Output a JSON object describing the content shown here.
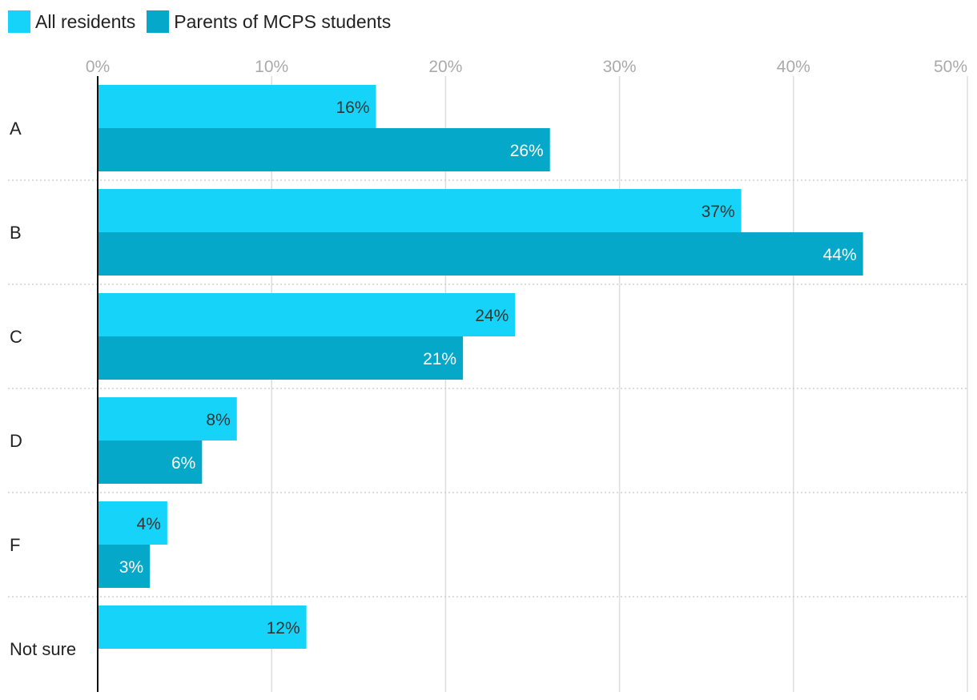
{
  "colors": {
    "all_residents": "#16d4f9",
    "parents": "#05a8c8",
    "grid": "#dddddd",
    "tick": "#aaaaaa",
    "separator": "#c8c8c8",
    "axis": "#111111",
    "label_dark": "#333333",
    "label_light": "#ffffff",
    "category_text": "#222222"
  },
  "legend": {
    "items": [
      {
        "label": "All residents",
        "color": "#16d4f9"
      },
      {
        "label": "Parents of MCPS students",
        "color": "#05a8c8"
      }
    ]
  },
  "chart_data": {
    "type": "bar",
    "orientation": "horizontal",
    "title": "",
    "xlabel": "",
    "ylabel": "",
    "xlim": [
      0,
      50
    ],
    "xticks": [
      "0%",
      "10%",
      "20%",
      "30%",
      "40%",
      "50%"
    ],
    "xtick_values": [
      0,
      10,
      20,
      30,
      40,
      50
    ],
    "grid": true,
    "legend_position": "top-left",
    "categories": [
      "A",
      "B",
      "C",
      "D",
      "F",
      "Not sure"
    ],
    "series": [
      {
        "name": "All residents",
        "values": [
          16,
          37,
          24,
          8,
          4,
          12
        ],
        "labels": [
          "16%",
          "37%",
          "24%",
          "8%",
          "4%",
          "12%"
        ]
      },
      {
        "name": "Parents of MCPS students",
        "values": [
          26,
          44,
          21,
          6,
          3,
          null
        ],
        "labels": [
          "26%",
          "44%",
          "21%",
          "6%",
          "3%",
          null
        ]
      }
    ]
  }
}
